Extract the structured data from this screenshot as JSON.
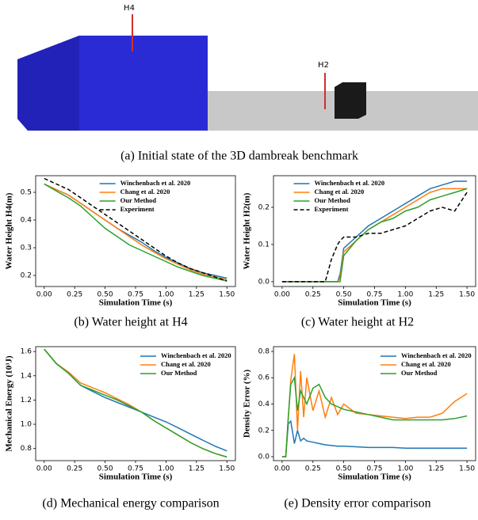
{
  "scene": {
    "labels": [
      "H4",
      "H2"
    ]
  },
  "captions": [
    "(a) Initial state of the 3D dambreak benchmark",
    "(b) Water height at H4",
    "(c) Water height at H2",
    "(d) Mechanical energy comparison",
    "(e) Density error comparison"
  ],
  "chart_data": [
    {
      "type": "line",
      "xlabel": "Simulation Time (s)",
      "ylabel": "Water Height H4(m)",
      "x": [
        0,
        0.1,
        0.2,
        0.3,
        0.4,
        0.5,
        0.6,
        0.7,
        0.8,
        0.9,
        1.0,
        1.1,
        1.2,
        1.3,
        1.4,
        1.5
      ],
      "series": [
        {
          "name": "Winchenbach et al. 2020",
          "color": "#1f77b4",
          "values": [
            0.53,
            0.51,
            0.49,
            0.46,
            0.43,
            0.4,
            0.37,
            0.345,
            0.32,
            0.29,
            0.265,
            0.245,
            0.225,
            0.21,
            0.2,
            0.19
          ]
        },
        {
          "name": "Chang et al. 2020",
          "color": "#ff7f0e",
          "values": [
            0.53,
            0.51,
            0.49,
            0.46,
            0.43,
            0.4,
            0.37,
            0.34,
            0.31,
            0.285,
            0.26,
            0.24,
            0.22,
            0.205,
            0.195,
            0.185
          ]
        },
        {
          "name": "Our Method",
          "color": "#2ca02c",
          "values": [
            0.53,
            0.505,
            0.48,
            0.45,
            0.41,
            0.37,
            0.34,
            0.31,
            0.29,
            0.27,
            0.25,
            0.23,
            0.215,
            0.2,
            0.19,
            0.18
          ]
        },
        {
          "name": "Experiment",
          "color": "#000000",
          "dash": true,
          "values": [
            0.55,
            0.53,
            0.51,
            0.48,
            0.45,
            0.42,
            0.39,
            0.36,
            0.33,
            0.3,
            0.27,
            0.245,
            0.225,
            0.21,
            0.195,
            0.18
          ]
        }
      ],
      "xlim": [
        -0.07,
        1.57
      ],
      "ylim": [
        0.16,
        0.56
      ],
      "xticks": [
        {
          "value": 0,
          "label": "0.00"
        },
        {
          "value": 0.25,
          "label": "0.25"
        },
        {
          "value": 0.5,
          "label": "0.50"
        },
        {
          "value": 0.75,
          "label": "0.75"
        },
        {
          "value": 1,
          "label": "1.00"
        },
        {
          "value": 1.25,
          "label": "1.25"
        },
        {
          "value": 1.5,
          "label": "1.50"
        }
      ],
      "yticks": [
        0.2,
        0.3,
        0.4,
        0.5
      ],
      "legend": "upper center"
    },
    {
      "type": "line",
      "xlabel": "Simulation Time (s)",
      "ylabel": "Water Height H2(m)",
      "x": [
        0,
        0.1,
        0.2,
        0.3,
        0.35,
        0.4,
        0.45,
        0.47,
        0.5,
        0.6,
        0.7,
        0.8,
        0.9,
        1.0,
        1.1,
        1.2,
        1.3,
        1.4,
        1.5
      ],
      "series": [
        {
          "name": "Winchenbach et al. 2020",
          "color": "#1f77b4",
          "values": [
            0,
            0,
            0,
            0,
            0,
            0,
            0,
            0.02,
            0.09,
            0.12,
            0.15,
            0.17,
            0.19,
            0.21,
            0.23,
            0.25,
            0.26,
            0.27,
            0.27
          ]
        },
        {
          "name": "Chang et al. 2020",
          "color": "#ff7f0e",
          "values": [
            0,
            0,
            0,
            0,
            0,
            0,
            0,
            0.01,
            0.08,
            0.11,
            0.14,
            0.16,
            0.18,
            0.2,
            0.22,
            0.24,
            0.25,
            0.25,
            0.25
          ]
        },
        {
          "name": "Our Method",
          "color": "#2ca02c",
          "values": [
            0,
            0,
            0,
            0,
            0,
            0,
            0,
            0,
            0.07,
            0.11,
            0.14,
            0.16,
            0.17,
            0.19,
            0.2,
            0.22,
            0.23,
            0.24,
            0.25
          ]
        },
        {
          "name": "Experiment",
          "color": "#000000",
          "dash": true,
          "values": [
            0,
            0,
            0,
            0,
            0,
            0.06,
            0.1,
            0.11,
            0.12,
            0.12,
            0.13,
            0.13,
            0.14,
            0.15,
            0.17,
            0.19,
            0.2,
            0.19,
            0.24
          ]
        }
      ],
      "xlim": [
        -0.07,
        1.57
      ],
      "ylim": [
        -0.013,
        0.285
      ],
      "xticks": [
        {
          "value": 0,
          "label": "0.00"
        },
        {
          "value": 0.25,
          "label": "0.25"
        },
        {
          "value": 0.5,
          "label": "0.50"
        },
        {
          "value": 0.75,
          "label": "0.75"
        },
        {
          "value": 1,
          "label": "1.00"
        },
        {
          "value": 1.25,
          "label": "1.25"
        },
        {
          "value": 1.5,
          "label": "1.50"
        }
      ],
      "yticks": [
        {
          "value": 0,
          "label": "0.0"
        },
        0.1,
        0.2
      ],
      "legend": "upper left"
    },
    {
      "type": "line",
      "xlabel": "Simulation Time (s)",
      "ylabel": "Mechanical Energy (10³J)",
      "x": [
        0,
        0.1,
        0.2,
        0.3,
        0.4,
        0.5,
        0.6,
        0.7,
        0.8,
        0.9,
        1.0,
        1.1,
        1.2,
        1.3,
        1.4,
        1.5
      ],
      "series": [
        {
          "name": "Winchenbach et al. 2020",
          "color": "#1f77b4",
          "values": [
            1.62,
            1.5,
            1.42,
            1.32,
            1.27,
            1.22,
            1.18,
            1.14,
            1.1,
            1.06,
            1.02,
            0.97,
            0.92,
            0.87,
            0.82,
            0.78
          ]
        },
        {
          "name": "Chang et al. 2020",
          "color": "#ff7f0e",
          "values": [
            1.62,
            1.5,
            1.43,
            1.34,
            1.3,
            1.26,
            1.21,
            1.16,
            1.1,
            1.03,
            0.97,
            0.91,
            0.85,
            0.8,
            0.76,
            0.73
          ]
        },
        {
          "name": "Our Method",
          "color": "#2ca02c",
          "values": [
            1.62,
            1.5,
            1.42,
            1.32,
            1.28,
            1.24,
            1.2,
            1.15,
            1.1,
            1.03,
            0.97,
            0.91,
            0.85,
            0.8,
            0.76,
            0.73
          ]
        }
      ],
      "xlim": [
        -0.07,
        1.57
      ],
      "ylim": [
        0.7,
        1.64
      ],
      "xticks": [
        {
          "value": 0,
          "label": "0.00"
        },
        {
          "value": 0.25,
          "label": "0.25"
        },
        {
          "value": 0.5,
          "label": "0.50"
        },
        {
          "value": 0.75,
          "label": "0.75"
        },
        {
          "value": 1,
          "label": "1.00"
        },
        {
          "value": 1.25,
          "label": "1.25"
        },
        {
          "value": 1.5,
          "label": "1.50"
        }
      ],
      "yticks": [
        0.8,
        {
          "value": 1,
          "label": "1.0"
        },
        1.2,
        1.4,
        1.6
      ],
      "legend": "upper right"
    },
    {
      "type": "line",
      "xlabel": "Simulation Time (s)",
      "ylabel": "Density Error (%)",
      "x": [
        0,
        0.03,
        0.05,
        0.07,
        0.1,
        0.125,
        0.15,
        0.175,
        0.2,
        0.25,
        0.3,
        0.35,
        0.4,
        0.45,
        0.5,
        0.6,
        0.7,
        0.8,
        0.9,
        1.0,
        1.1,
        1.2,
        1.3,
        1.4,
        1.5
      ],
      "series": [
        {
          "name": "Winchenbach et al. 2020",
          "color": "#1f77b4",
          "values": [
            0,
            0,
            0.25,
            0.27,
            0.1,
            0.2,
            0.12,
            0.14,
            0.12,
            0.11,
            0.1,
            0.09,
            0.085,
            0.08,
            0.08,
            0.075,
            0.07,
            0.07,
            0.07,
            0.065,
            0.065,
            0.065,
            0.065,
            0.065,
            0.065
          ]
        },
        {
          "name": "Chang et al. 2020",
          "color": "#ff7f0e",
          "values": [
            0,
            0,
            0.3,
            0.58,
            0.78,
            0.2,
            0.65,
            0.3,
            0.6,
            0.35,
            0.5,
            0.3,
            0.45,
            0.32,
            0.4,
            0.33,
            0.32,
            0.31,
            0.3,
            0.29,
            0.3,
            0.3,
            0.33,
            0.42,
            0.48
          ]
        },
        {
          "name": "Our Method",
          "color": "#2ca02c",
          "values": [
            0,
            0,
            0.3,
            0.55,
            0.6,
            0.35,
            0.5,
            0.45,
            0.4,
            0.52,
            0.55,
            0.45,
            0.4,
            0.38,
            0.36,
            0.34,
            0.32,
            0.3,
            0.28,
            0.28,
            0.28,
            0.28,
            0.28,
            0.29,
            0.31
          ]
        }
      ],
      "xlim": [
        -0.07,
        1.57
      ],
      "ylim": [
        -0.03,
        0.836
      ],
      "xticks": [
        {
          "value": 0,
          "label": "0.00"
        },
        {
          "value": 0.25,
          "label": "0.25"
        },
        {
          "value": 0.5,
          "label": "0.50"
        },
        {
          "value": 0.75,
          "label": "0.75"
        },
        {
          "value": 1,
          "label": "1.00"
        },
        {
          "value": 1.25,
          "label": "1.25"
        },
        {
          "value": 1.5,
          "label": "1.50"
        }
      ],
      "yticks": [
        {
          "value": 0,
          "label": "0.0"
        },
        0.2,
        0.4,
        0.6,
        0.8
      ],
      "legend": "upper right"
    }
  ]
}
